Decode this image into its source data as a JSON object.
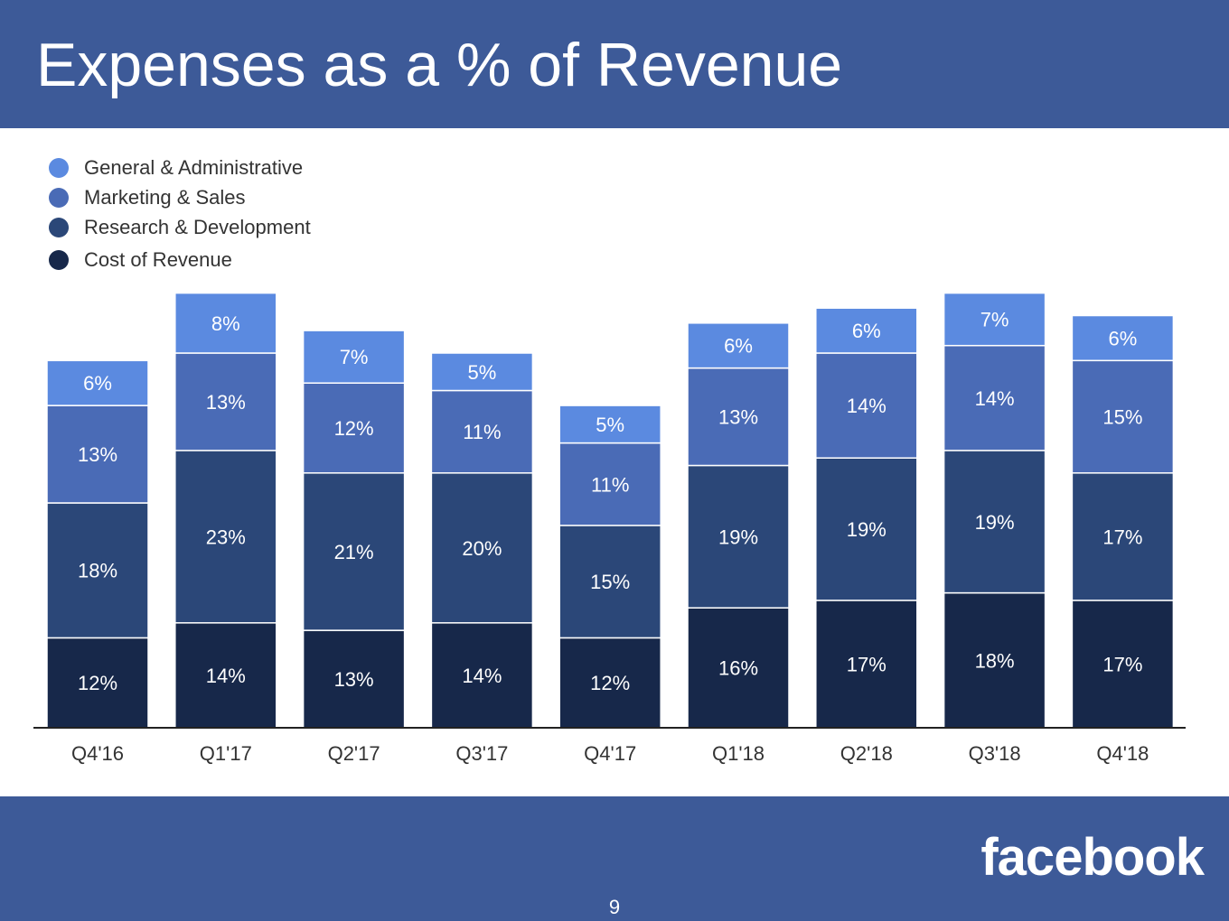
{
  "header": {
    "title": "Expenses as a % of Revenue"
  },
  "colors": {
    "banner": "#3d5a98",
    "general_admin": "#5b8ae0",
    "marketing_sales": "#4a6bb6",
    "research_dev": "#2b4778",
    "cost_of_revenue": "#17284a"
  },
  "chart_data": {
    "type": "bar",
    "stacked": true,
    "categories": [
      "Q4'16",
      "Q1'17",
      "Q2'17",
      "Q3'17",
      "Q4'17",
      "Q1'18",
      "Q2'18",
      "Q3'18",
      "Q4'18"
    ],
    "series": [
      {
        "name": "Cost of Revenue",
        "color": "#17284a",
        "values": [
          12,
          14,
          13,
          14,
          12,
          16,
          17,
          18,
          17
        ],
        "labels": [
          "12%",
          "14%",
          "13%",
          "14%",
          "12%",
          "16%",
          "17%",
          "18%",
          "17%"
        ]
      },
      {
        "name": "Research & Development",
        "color": "#2b4778",
        "values": [
          18,
          23,
          21,
          20,
          15,
          19,
          19,
          19,
          17
        ],
        "labels": [
          "18%",
          "23%",
          "21%",
          "20%",
          "15%",
          "19%",
          "19%",
          "19%",
          "17%"
        ]
      },
      {
        "name": "Marketing & Sales",
        "color": "#4a6bb6",
        "values": [
          13,
          13,
          12,
          11,
          11,
          13,
          14,
          14,
          15
        ],
        "labels": [
          "13%",
          "13%",
          "12%",
          "11%",
          "11%",
          "13%",
          "14%",
          "14%",
          "15%"
        ]
      },
      {
        "name": "General & Administrative",
        "color": "#5b8ae0",
        "values": [
          6,
          8,
          7,
          5,
          5,
          6,
          6,
          7,
          6
        ],
        "labels": [
          "6%",
          "8%",
          "7%",
          "5%",
          "5%",
          "6%",
          "6%",
          "7%",
          "6%"
        ]
      }
    ],
    "legend_order": [
      "General & Administrative",
      "Marketing & Sales",
      "Research & Development",
      "Cost of Revenue"
    ],
    "legend_position": "top-left",
    "grid": false,
    "value_unit": "%"
  },
  "footer": {
    "logo_text": "facebook",
    "page_number": "9"
  }
}
